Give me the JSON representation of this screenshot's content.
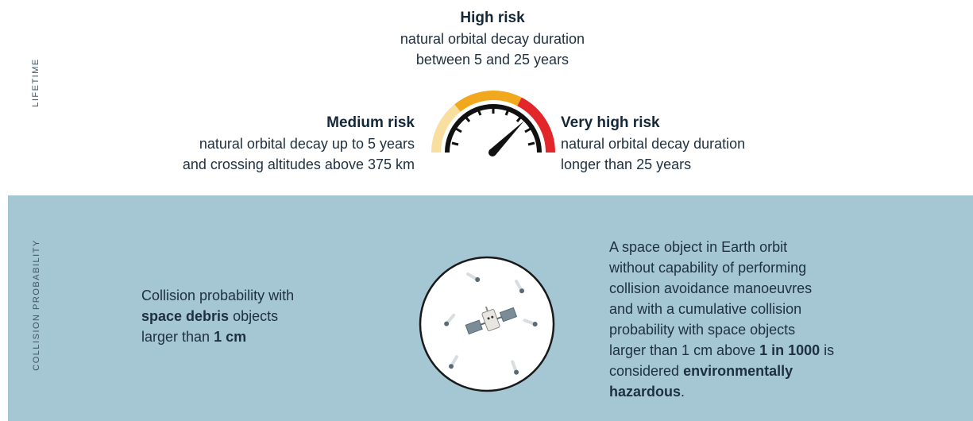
{
  "lifetime": {
    "section_label": "LIFETIME",
    "high": {
      "title": "High risk",
      "line1": "natural orbital decay duration",
      "line2": "between 5 and 25 years"
    },
    "medium": {
      "title": "Medium risk",
      "line1": "natural orbital decay up to 5 years",
      "line2": "and crossing altitudes above 375 km"
    },
    "very_high": {
      "title": "Very high risk",
      "line1": "natural orbital decay duration",
      "line2": "longer than 25 years"
    },
    "gauge_colors": {
      "medium": "#f8dfa0",
      "high": "#f1a81c",
      "very_high": "#e3262a"
    }
  },
  "collision": {
    "section_label": "COLLISION PROBABILITY",
    "left": {
      "line1": "Collision probability with",
      "bold1": "space debris",
      "line2_rest": " objects",
      "line3_pre": "larger than ",
      "bold2": "1 cm"
    },
    "right": {
      "line1": "A space object in Earth orbit",
      "line2": "without capability of performing",
      "line3": "collision avoidance manoeuvres",
      "line4": "and with a cumulative collision",
      "line5": "probability with space objects",
      "line6_pre": "larger than 1 cm above ",
      "bold1": "1 in 1000",
      "line6_post": " is",
      "line7_pre": "considered ",
      "bold2": "environmentally",
      "bold3": "hazardous",
      "line8_post": "."
    },
    "bg_color": "#a5c6d3"
  }
}
